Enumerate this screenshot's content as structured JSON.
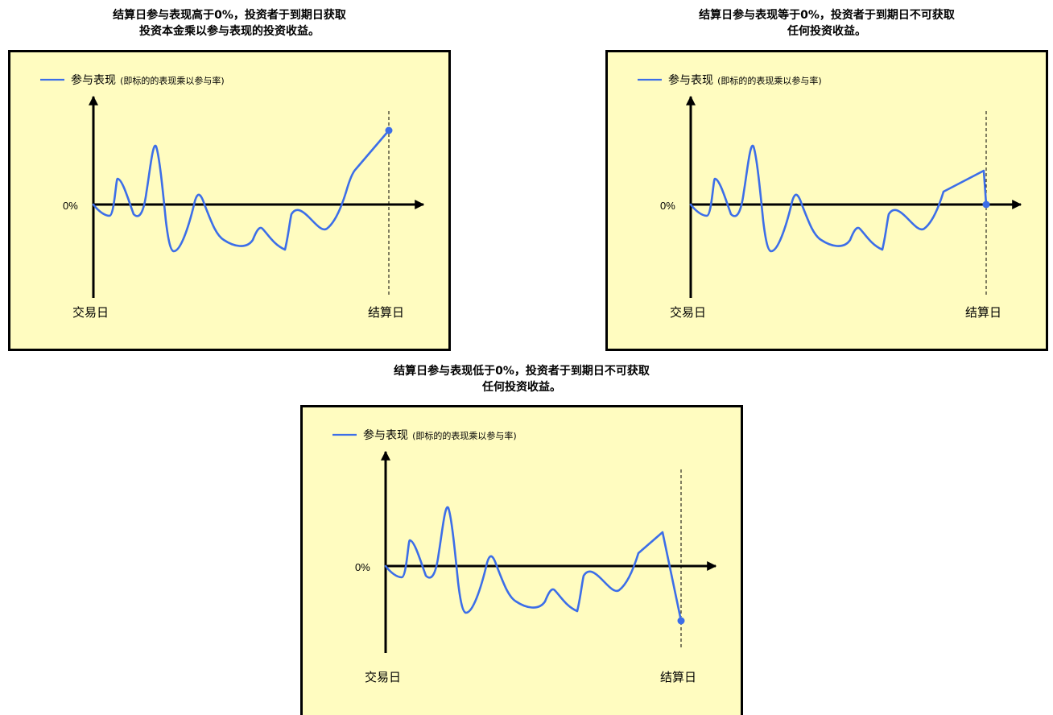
{
  "panels": [
    {
      "title_line1": "结算日参与表现高于0%，投资者于到期日获取",
      "title_line2": "投资本金乘以参与表现的投资收益。",
      "legend_main": "参与表现",
      "legend_note": "(即标的的表现乘以参与率)",
      "zero_label": "0%",
      "start_label": "交易日",
      "end_label": "结算日",
      "outcome": "above zero"
    },
    {
      "title_line1": "结算日参与表现等于0%，投资者于到期日不可获取",
      "title_line2": "任何投资收益。",
      "legend_main": "参与表现",
      "legend_note": "(即标的的表现乘以参与率)",
      "zero_label": "0%",
      "start_label": "交易日",
      "end_label": "结算日",
      "outcome": "equal zero"
    },
    {
      "title_line1": "结算日参与表现低于0%，投资者于到期日不可获取",
      "title_line2": "任何投资收益。",
      "legend_main": "参与表现",
      "legend_note": "(即标的的表现乘以参与率)",
      "zero_label": "0%",
      "start_label": "交易日",
      "end_label": "结算日",
      "outcome": "below zero"
    }
  ],
  "colors": {
    "panel_fill": "#fffcc0",
    "curve": "#3c6ee8",
    "border": "#000000"
  }
}
